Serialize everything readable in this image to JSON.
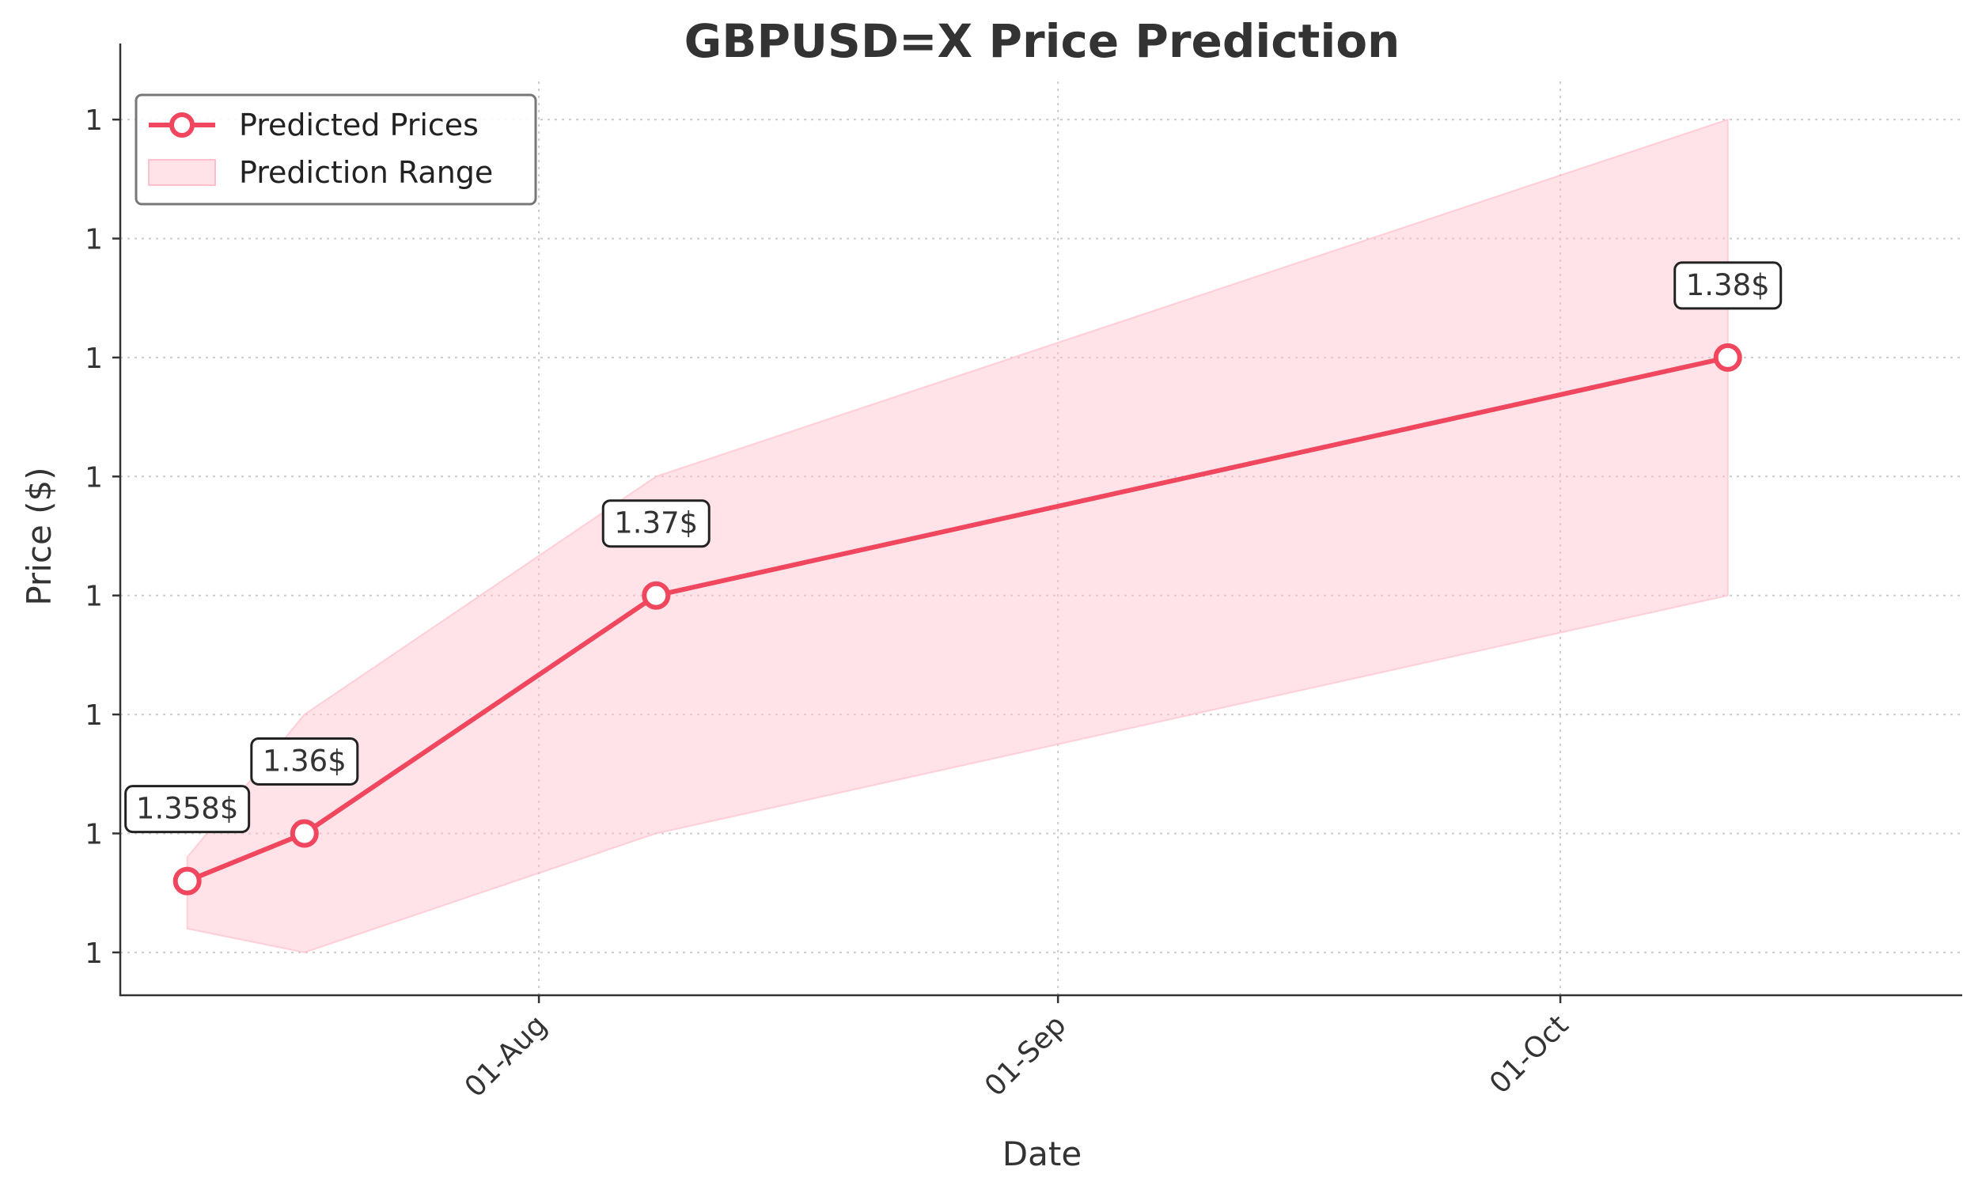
{
  "chart_data": {
    "type": "line",
    "title": "GBPUSD=X Price Prediction",
    "xlabel": "Date",
    "ylabel": "Price ($)",
    "x": [
      "2025-07-11",
      "2025-07-18",
      "2025-08-08",
      "2025-10-11"
    ],
    "series": [
      {
        "name": "Predicted Prices",
        "values": [
          1.358,
          1.36,
          1.37,
          1.38
        ],
        "labels": [
          "1.358$",
          "1.36$",
          "1.37$",
          "1.38$"
        ]
      }
    ],
    "range": {
      "name": "Prediction Range",
      "lower": [
        1.356,
        1.355,
        1.36,
        1.37
      ],
      "upper": [
        1.359,
        1.365,
        1.375,
        1.39
      ]
    },
    "x_ticks": [
      {
        "date": "2025-08-01",
        "label": "01-Aug"
      },
      {
        "date": "2025-09-01",
        "label": "01-Sep"
      },
      {
        "date": "2025-10-01",
        "label": "01-Oct"
      }
    ],
    "y_ticks": [
      1.355,
      1.36,
      1.365,
      1.37,
      1.375,
      1.38,
      1.385,
      1.39
    ],
    "y_tick_labels": [
      "1",
      "1",
      "1",
      "1",
      "1",
      "1",
      "1",
      "1"
    ],
    "xlim": [
      "2025-07-07",
      "2025-10-25"
    ],
    "ylim": [
      1.3532,
      1.3916
    ],
    "grid": true,
    "legend_position": "upper-left",
    "colors": {
      "line": "#f0475f",
      "marker_face": "#ffffff",
      "range_fill": "#ffc0cb",
      "text": "#333333"
    }
  }
}
